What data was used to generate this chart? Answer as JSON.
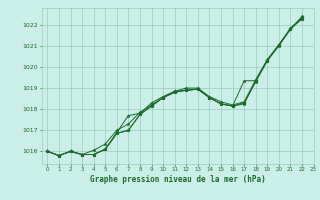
{
  "title": "Graphe pression niveau de la mer (hPa)",
  "background_color": "#cceee8",
  "plot_bg_color": "#cceee8",
  "grid_color": "#99ccbb",
  "line_color": "#1a6b2a",
  "xlim": [
    -0.5,
    23
  ],
  "ylim": [
    1015.4,
    1022.8
  ],
  "yticks": [
    1016,
    1017,
    1018,
    1019,
    1020,
    1021,
    1022
  ],
  "xticks": [
    0,
    1,
    2,
    3,
    4,
    5,
    6,
    7,
    8,
    9,
    10,
    11,
    12,
    13,
    14,
    15,
    16,
    17,
    18,
    19,
    20,
    21,
    22,
    23
  ],
  "series": [
    [
      1016.0,
      1015.8,
      1016.0,
      1015.85,
      1015.85,
      1016.1,
      1016.9,
      1017.7,
      1017.8,
      1018.3,
      1018.6,
      1018.85,
      1019.0,
      1019.0,
      1018.6,
      1018.35,
      1018.2,
      1018.35,
      1019.4,
      1020.35,
      1021.05,
      1021.8,
      1022.4
    ],
    [
      1016.0,
      1015.8,
      1016.0,
      1015.85,
      1015.85,
      1016.1,
      1016.85,
      1017.0,
      1017.75,
      1018.15,
      1018.55,
      1018.8,
      1018.9,
      1018.95,
      1018.55,
      1018.25,
      1018.15,
      1018.3,
      1019.3,
      1020.3,
      1021.0,
      1021.8,
      1022.3
    ],
    [
      1016.0,
      1015.8,
      1016.0,
      1015.85,
      1016.05,
      1016.35,
      1017.0,
      1017.3,
      1017.85,
      1018.2,
      1018.55,
      1018.85,
      1018.9,
      1018.95,
      1018.55,
      1018.25,
      1018.15,
      1018.25,
      1019.35,
      1020.3,
      1021.05,
      1021.8,
      1022.3
    ],
    [
      1016.0,
      1015.8,
      1016.0,
      1015.85,
      1015.85,
      1016.1,
      1016.85,
      1017.0,
      1017.75,
      1018.15,
      1018.55,
      1018.8,
      1018.9,
      1018.95,
      1018.55,
      1018.25,
      1018.15,
      1019.35,
      1019.35,
      1020.35,
      1021.05,
      1021.85,
      1022.35
    ]
  ]
}
